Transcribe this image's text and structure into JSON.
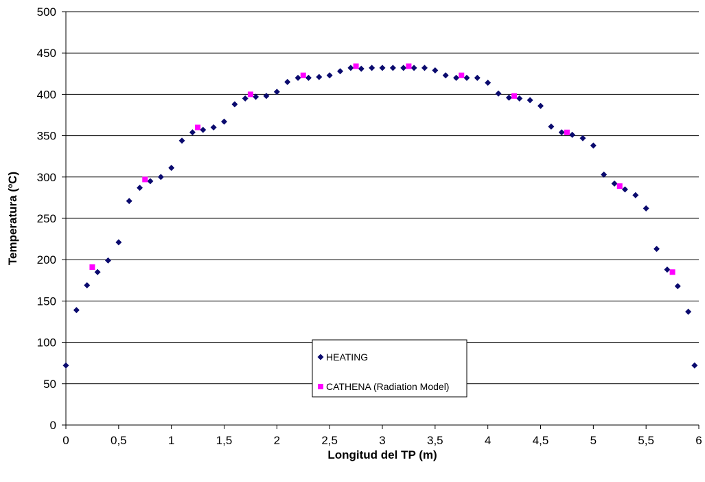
{
  "chart_data": {
    "type": "scatter",
    "title": "",
    "xlabel": "Longitud del TP (m)",
    "ylabel": "Temperatura (ºC)",
    "xlim": [
      0,
      6
    ],
    "ylim": [
      0,
      500
    ],
    "xticks": [
      0,
      0.5,
      1,
      1.5,
      2,
      2.5,
      3,
      3.5,
      4,
      4.5,
      5,
      5.5,
      6
    ],
    "xtick_labels": [
      "0",
      "0,5",
      "1",
      "1,5",
      "2",
      "2,5",
      "3",
      "3,5",
      "4",
      "4,5",
      "5",
      "5,5",
      "6"
    ],
    "yticks": [
      0,
      50,
      100,
      150,
      200,
      250,
      300,
      350,
      400,
      450,
      500
    ],
    "ytick_labels": [
      "0",
      "50",
      "100",
      "150",
      "200",
      "250",
      "300",
      "350",
      "400",
      "450",
      "500"
    ],
    "grid": "horizontal",
    "legend_position": "bottom-center",
    "series": [
      {
        "name": "HEATING",
        "marker": "diamond",
        "color": "#0a0a6e",
        "x": [
          0,
          0.1,
          0.2,
          0.3,
          0.4,
          0.5,
          0.6,
          0.7,
          0.8,
          0.9,
          1.0,
          1.1,
          1.2,
          1.3,
          1.4,
          1.5,
          1.6,
          1.7,
          1.8,
          1.9,
          2.0,
          2.1,
          2.2,
          2.3,
          2.4,
          2.5,
          2.6,
          2.7,
          2.8,
          2.9,
          3.0,
          3.1,
          3.2,
          3.3,
          3.4,
          3.5,
          3.6,
          3.7,
          3.8,
          3.9,
          4.0,
          4.1,
          4.2,
          4.3,
          4.4,
          4.5,
          4.6,
          4.7,
          4.8,
          4.9,
          5.0,
          5.1,
          5.2,
          5.3,
          5.4,
          5.5,
          5.6,
          5.7,
          5.8,
          5.9
        ],
        "y": [
          72,
          139,
          169,
          185,
          199,
          221,
          271,
          287,
          295,
          300,
          311,
          344,
          354,
          357,
          360,
          367,
          388,
          395,
          397,
          398,
          403,
          415,
          420,
          420,
          421,
          423,
          428,
          432,
          431,
          432,
          432,
          432,
          432,
          432,
          432,
          429,
          423,
          420,
          420,
          420,
          414,
          401,
          396,
          395,
          393,
          386,
          361,
          354,
          351,
          347,
          338,
          303,
          292,
          285,
          278,
          262,
          213,
          188,
          168,
          137
        ]
      },
      {
        "name": "CATHENA (Radiation Model)",
        "marker": "square",
        "color": "#ff00ff",
        "x": [
          0.25,
          0.75,
          1.25,
          1.75,
          2.25,
          2.75,
          3.25,
          3.75,
          4.25,
          4.75,
          5.25,
          5.75
        ],
        "y": [
          191,
          297,
          360,
          400,
          423,
          434,
          434,
          423,
          398,
          354,
          289,
          185
        ]
      }
    ],
    "extra_point_note": ""
  }
}
